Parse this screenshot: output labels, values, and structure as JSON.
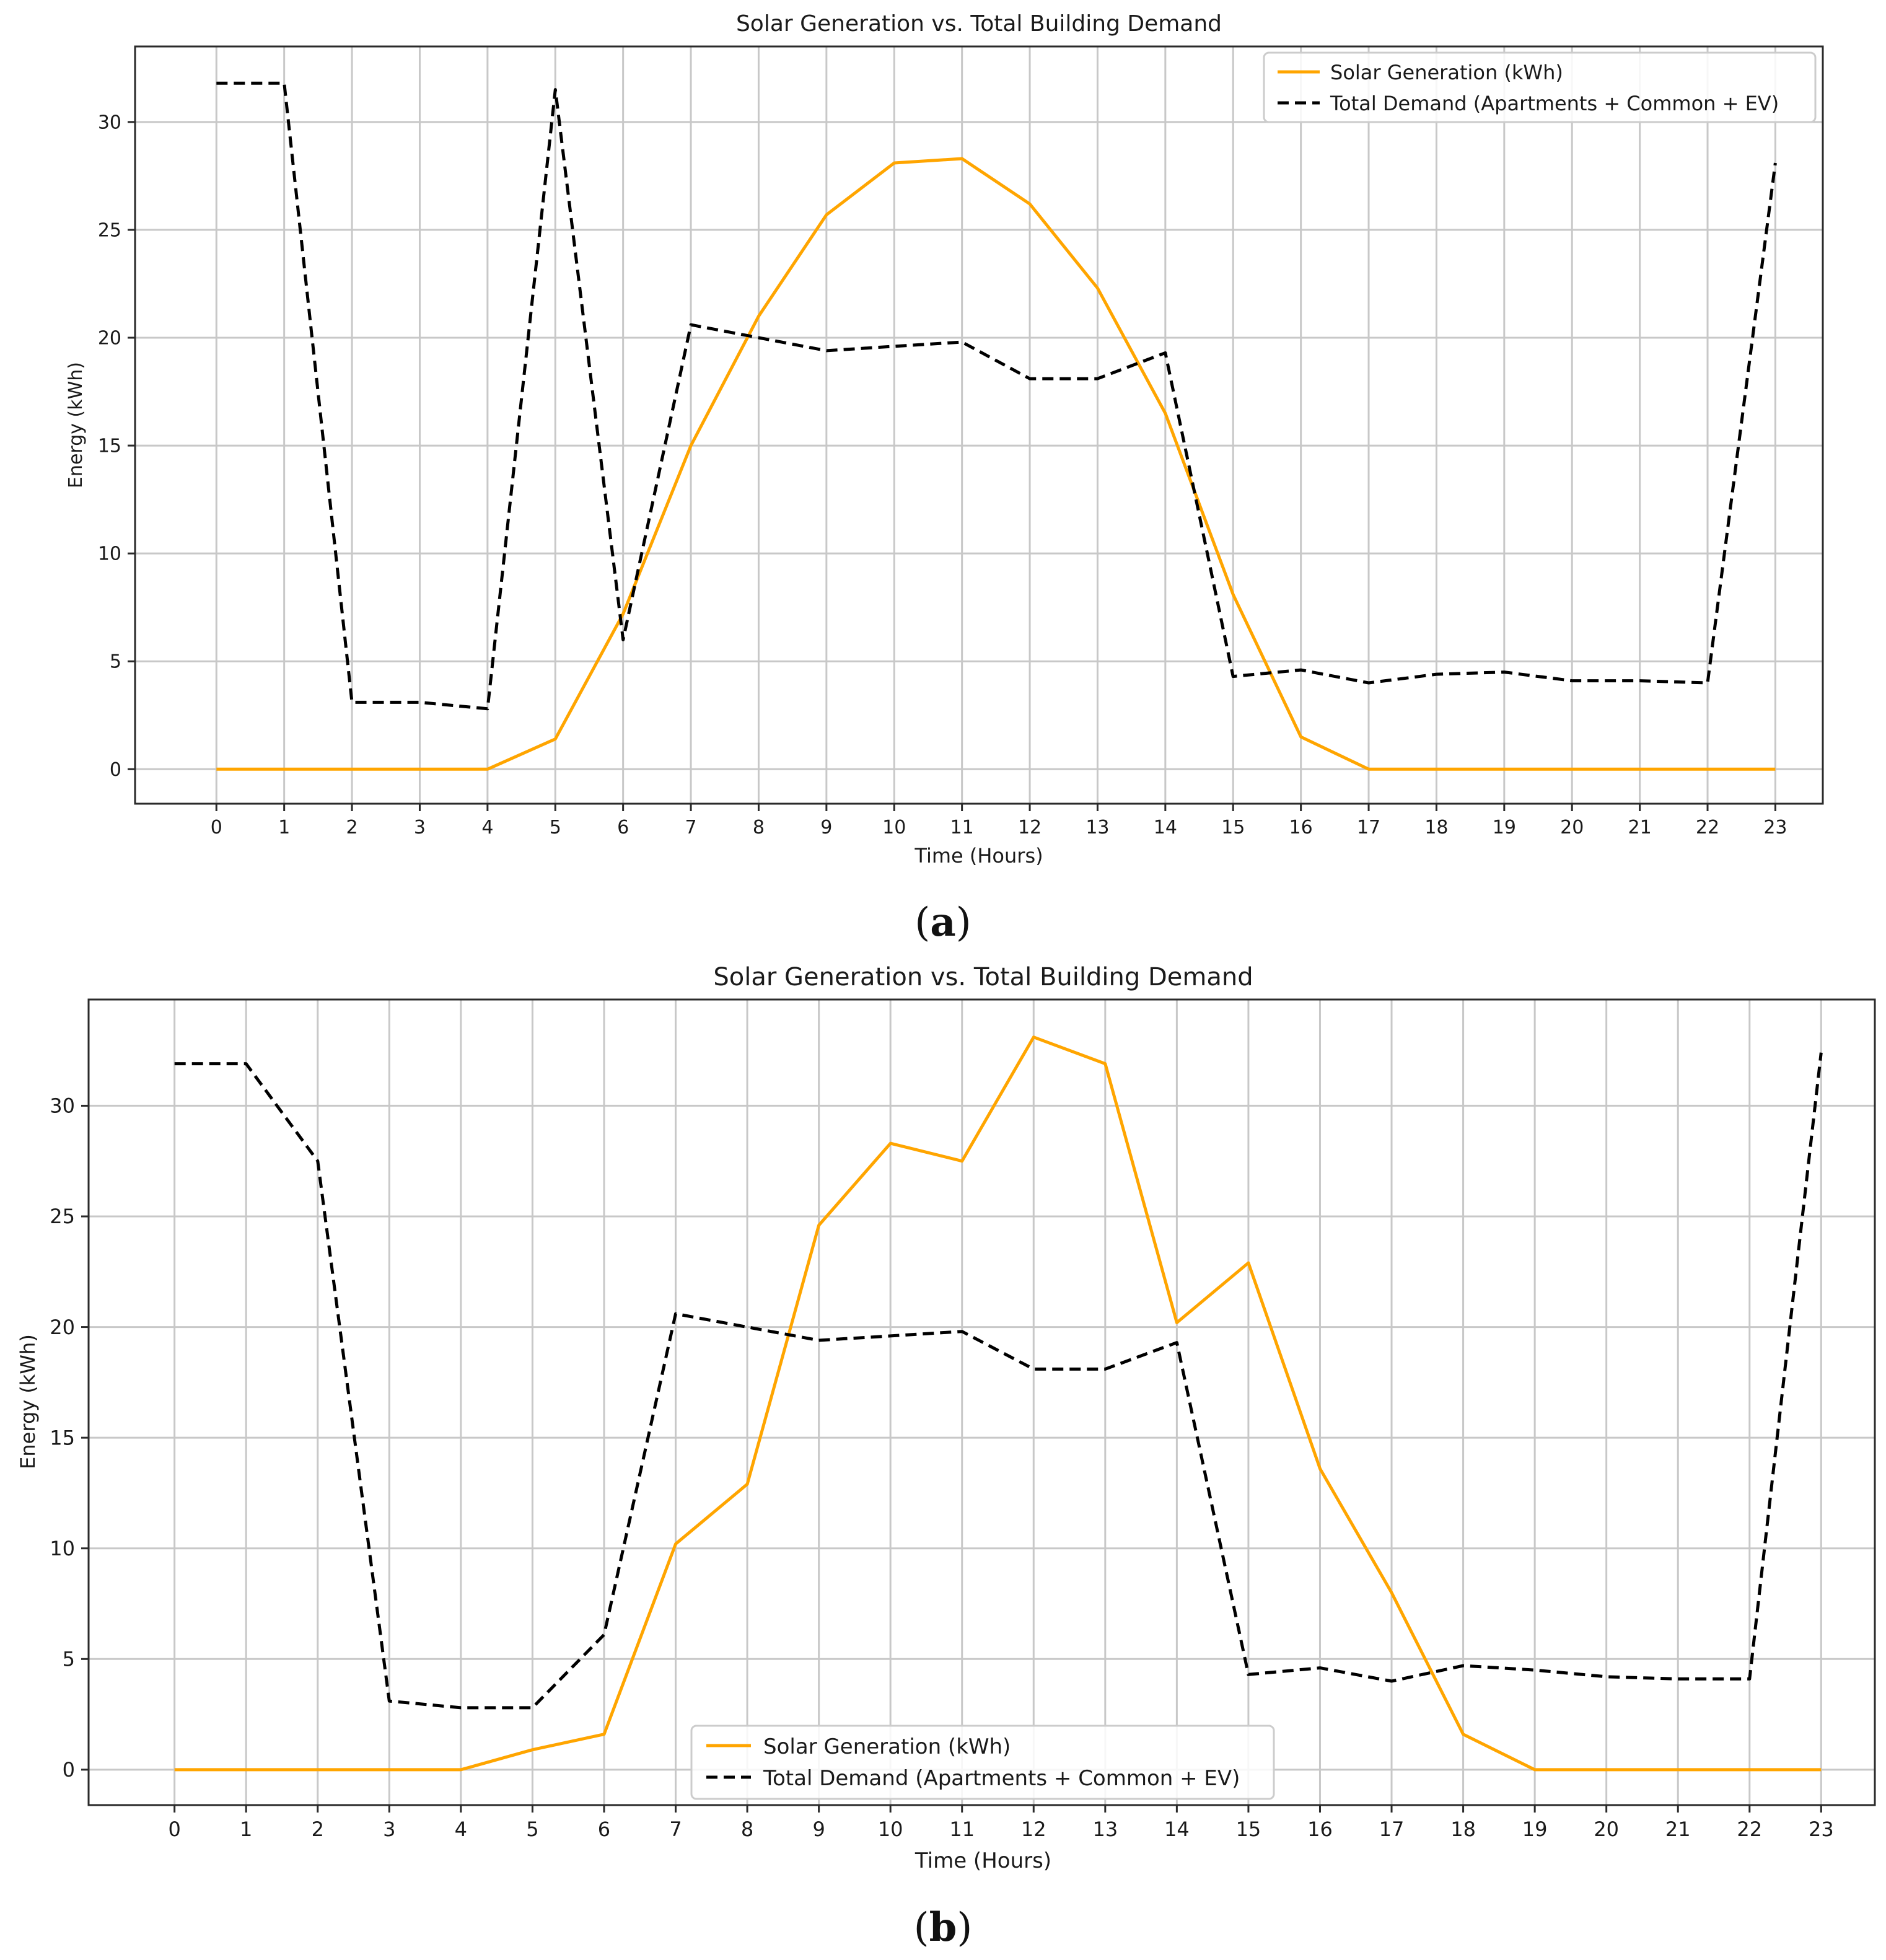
{
  "colors": {
    "solar": "#FFA500",
    "demand": "#000000",
    "grid": "#c8c8c8",
    "frame": "#2a2a2a"
  },
  "chart_data": [
    {
      "type": "line",
      "panel_label": "a",
      "title": "Solar Generation vs. Total Building Demand",
      "xlabel": "Time (Hours)",
      "ylabel": "Energy (kWh)",
      "x": [
        0,
        1,
        2,
        3,
        4,
        5,
        6,
        7,
        8,
        9,
        10,
        11,
        12,
        13,
        14,
        15,
        16,
        17,
        18,
        19,
        20,
        21,
        22,
        23
      ],
      "xlim": [
        -1.2,
        23.7
      ],
      "ylim": [
        -1.6,
        33.5
      ],
      "yticks": [
        0,
        5,
        10,
        15,
        20,
        25,
        30
      ],
      "grid": true,
      "legend_position": "top-right",
      "series": [
        {
          "name": "Solar Generation (kWh)",
          "style": "solid",
          "color": "#FFA500",
          "values": [
            0,
            0,
            0,
            0,
            0,
            1.4,
            7.2,
            15.0,
            21.0,
            25.7,
            28.1,
            28.3,
            26.2,
            22.3,
            16.5,
            8.1,
            1.5,
            0,
            0,
            0,
            0,
            0,
            0,
            0
          ]
        },
        {
          "name": "Total Demand (Apartments + Common + EV)",
          "style": "dashed",
          "color": "#000000",
          "values": [
            31.8,
            31.8,
            3.1,
            3.1,
            2.8,
            31.5,
            6.0,
            20.6,
            20.0,
            19.4,
            19.6,
            19.8,
            18.1,
            18.1,
            19.3,
            4.3,
            4.6,
            4.0,
            4.4,
            4.5,
            4.1,
            4.1,
            4.0,
            28.1
          ]
        }
      ]
    },
    {
      "type": "line",
      "panel_label": "b",
      "title": "Solar Generation vs. Total Building Demand",
      "xlabel": "Time (Hours)",
      "ylabel": "Energy (kWh)",
      "x": [
        0,
        1,
        2,
        3,
        4,
        5,
        6,
        7,
        8,
        9,
        10,
        11,
        12,
        13,
        14,
        15,
        16,
        17,
        18,
        19,
        20,
        21,
        22,
        23
      ],
      "xlim": [
        -1.2,
        23.75
      ],
      "ylim": [
        -1.6,
        34.8
      ],
      "yticks": [
        0,
        5,
        10,
        15,
        20,
        25,
        30
      ],
      "grid": true,
      "legend_position": "lower-center",
      "series": [
        {
          "name": "Solar Generation (kWh)",
          "style": "solid",
          "color": "#FFA500",
          "values": [
            0,
            0,
            0,
            0,
            0,
            0.9,
            1.6,
            10.2,
            12.9,
            24.6,
            28.3,
            27.5,
            33.1,
            31.9,
            20.2,
            22.9,
            13.6,
            8.0,
            1.6,
            0,
            0,
            0,
            0,
            0
          ]
        },
        {
          "name": "Total Demand (Apartments + Common + EV)",
          "style": "dashed",
          "color": "#000000",
          "values": [
            31.9,
            31.9,
            27.5,
            3.1,
            2.8,
            2.8,
            6.1,
            20.6,
            20.0,
            19.4,
            19.6,
            19.8,
            18.1,
            18.1,
            19.3,
            4.3,
            4.6,
            4.0,
            4.7,
            4.5,
            4.2,
            4.1,
            4.1,
            32.4
          ]
        }
      ]
    }
  ]
}
